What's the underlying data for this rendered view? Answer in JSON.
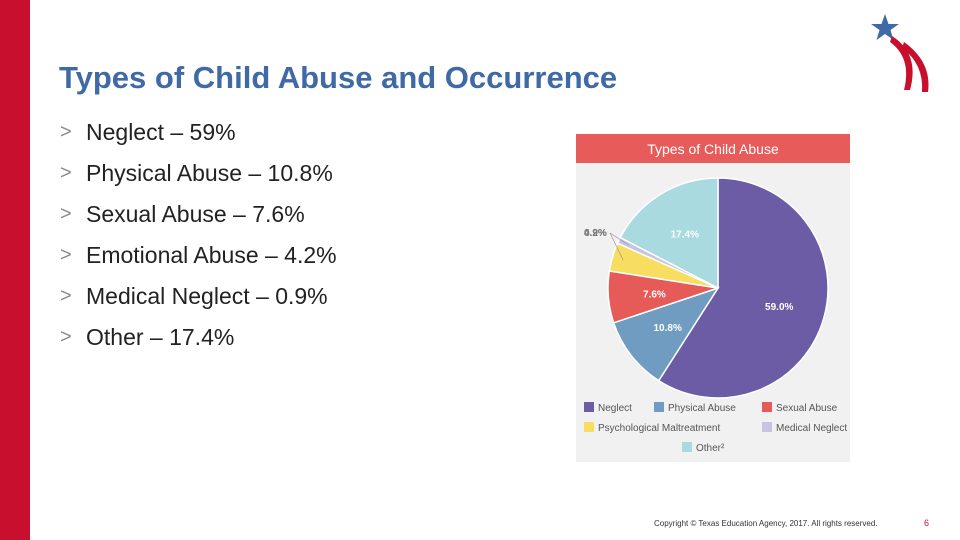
{
  "slide": {
    "title": "Types of Child Abuse and Occurrence",
    "bullet_marker": ">",
    "bullets": [
      "Neglect – 59%",
      "Physical Abuse – 10.8%",
      "Sexual Abuse – 7.6%",
      "Emotional Abuse – 4.2%",
      "Medical Neglect – 0.9%",
      "Other – 17.4%"
    ],
    "footer": "Copyright © Texas Education Agency, 2017. All rights reserved.",
    "page_number": "6"
  },
  "colors": {
    "accent_red": "#c8102e",
    "title_blue": "#3f6aa6",
    "chart_header": "#e85b5b"
  },
  "chart_data": {
    "type": "pie",
    "title": "Types of Child Abuse",
    "slices": [
      {
        "label": "Neglect",
        "value": 59.0,
        "display": "59.0%",
        "color": "#6b5ca5"
      },
      {
        "label": "Physical Abuse",
        "value": 10.8,
        "display": "10.8%",
        "color": "#6f9cc0"
      },
      {
        "label": "Sexual Abuse",
        "value": 7.6,
        "display": "7.6%",
        "color": "#e65a57"
      },
      {
        "label": "Psychological Maltreatment",
        "value": 4.2,
        "display": "4.2%",
        "color": "#f7de60"
      },
      {
        "label": "Medical Neglect",
        "value": 0.9,
        "display": "0.9%",
        "color": "#c7c3e2"
      },
      {
        "label": "Other²",
        "value": 17.4,
        "display": "17.4%",
        "color": "#a9dadf"
      }
    ]
  }
}
